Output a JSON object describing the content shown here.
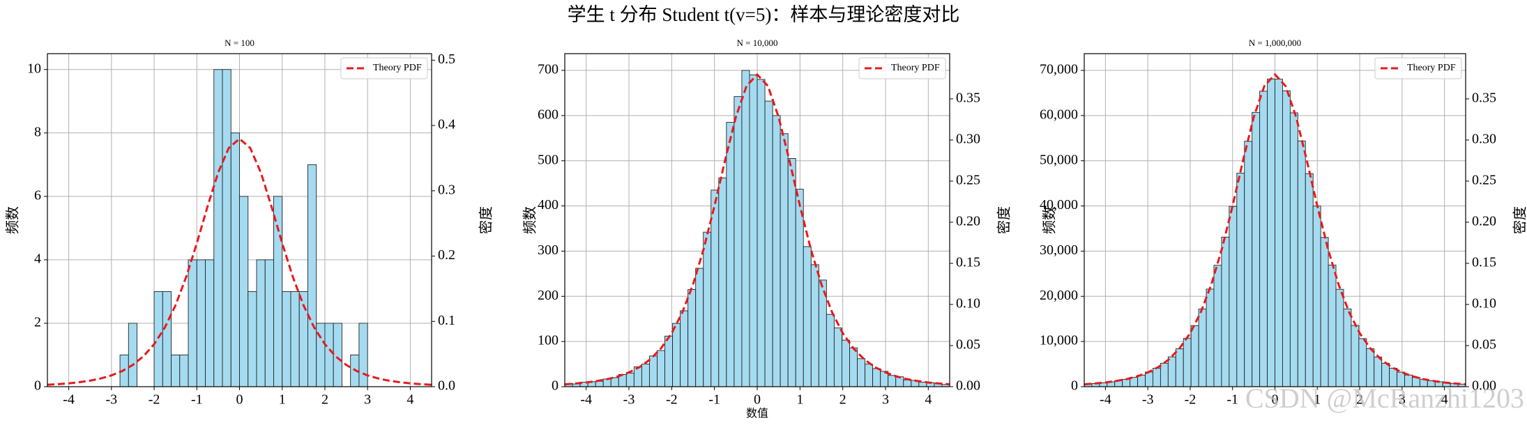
{
  "title": "学生 t 分布 Student t(v=5)：样本与理论密度对比",
  "watermark": "CSDN @McRanzhi1203",
  "chart_data": [
    {
      "type": "histogram",
      "title": "N = 100",
      "ylabel": "频数",
      "y2label": "密度",
      "bins": [
        -2.8,
        -2.6,
        -2.4,
        -2.2,
        -2.0,
        -1.8,
        -1.6,
        -1.4,
        -1.2,
        -1.0,
        -0.8,
        -0.6,
        -0.4,
        -0.2,
        0,
        0.2,
        0.4,
        0.6,
        0.8,
        1.0,
        1.2,
        1.4,
        1.6,
        1.8,
        2.0,
        2.2,
        2.4,
        2.6,
        2.8,
        3.0
      ],
      "values": [
        1,
        2,
        0,
        0,
        3,
        3,
        1,
        1,
        4,
        4,
        4,
        10,
        10,
        8,
        6,
        3,
        4,
        4,
        6,
        3,
        3,
        3,
        7,
        2,
        2,
        2,
        0,
        1,
        2
      ],
      "color": "#a5dbf0",
      "edgecolor": "#222222",
      "series": [
        {
          "name": "Theory PDF",
          "color": "#e8191c",
          "axis": "y2",
          "x": [
            -4.5,
            -4.25,
            -4,
            -3.75,
            -3.5,
            -3.25,
            -3,
            -2.75,
            -2.5,
            -2.25,
            -2,
            -1.75,
            -1.5,
            -1.25,
            -1,
            -0.75,
            -0.5,
            -0.25,
            0,
            0.25,
            0.5,
            0.75,
            1,
            1.25,
            1.5,
            1.75,
            2,
            2.25,
            2.5,
            2.75,
            3,
            3.25,
            3.5,
            3.75,
            4,
            4.25,
            4.5
          ],
          "values": [
            0.0029,
            0.0039,
            0.0051,
            0.0069,
            0.0092,
            0.0126,
            0.0173,
            0.0239,
            0.0333,
            0.0466,
            0.0651,
            0.0905,
            0.1245,
            0.1679,
            0.2197,
            0.2757,
            0.3279,
            0.3657,
            0.3796,
            0.3657,
            0.3279,
            0.2757,
            0.2197,
            0.1679,
            0.1245,
            0.0905,
            0.0651,
            0.0466,
            0.0333,
            0.0239,
            0.0173,
            0.0126,
            0.0092,
            0.0069,
            0.0051,
            0.0039,
            0.0029
          ]
        }
      ],
      "xlim": [
        -4.5,
        4.5
      ],
      "xticks": [
        -4,
        -3,
        -2,
        -1,
        0,
        1,
        2,
        3,
        4
      ],
      "ylim": [
        0,
        10.5
      ],
      "yticks": [
        0,
        2,
        4,
        6,
        8,
        10
      ],
      "y2lim": [
        0,
        0.51
      ],
      "y2ticks": [
        {
          "value": 0,
          "label": "0.0"
        },
        0.1,
        0.2,
        0.3,
        0.4,
        0.5
      ],
      "grid": true,
      "legend": "upper right"
    },
    {
      "type": "histogram",
      "title": "N = 10,000",
      "xlabel": "数值",
      "ylabel": "频数",
      "y2label": "密度",
      "bins": [
        -4.5,
        -4.32,
        -4.14,
        -3.96,
        -3.78,
        -3.6,
        -3.42,
        -3.24,
        -3.06,
        -2.88,
        -2.7,
        -2.52,
        -2.34,
        -2.16,
        -1.98,
        -1.8,
        -1.62,
        -1.44,
        -1.26,
        -1.08,
        -0.9,
        -0.72,
        -0.54,
        -0.36,
        -0.18,
        0,
        0.18,
        0.36,
        0.54,
        0.72,
        0.9,
        1.08,
        1.26,
        1.44,
        1.62,
        1.8,
        1.98,
        2.16,
        2.34,
        2.52,
        2.7,
        2.88,
        3.06,
        3.24,
        3.42,
        3.6,
        3.78,
        3.96,
        4.14,
        4.32,
        4.5
      ],
      "values": [
        7,
        6,
        10,
        11,
        12,
        17,
        20,
        27,
        30,
        44,
        50,
        68,
        80,
        112,
        140,
        168,
        215,
        262,
        342,
        435,
        462,
        585,
        642,
        700,
        690,
        680,
        632,
        600,
        560,
        505,
        437,
        310,
        270,
        236,
        160,
        130,
        103,
        86,
        62,
        50,
        40,
        34,
        25,
        22,
        15,
        14,
        10,
        9,
        7,
        5
      ],
      "color": "#a5dbf0",
      "edgecolor": "#222222",
      "series": [
        {
          "name": "Theory PDF",
          "color": "#e8191c",
          "axis": "y2",
          "x": [
            -4.5,
            -4.25,
            -4,
            -3.75,
            -3.5,
            -3.25,
            -3,
            -2.75,
            -2.5,
            -2.25,
            -2,
            -1.75,
            -1.5,
            -1.25,
            -1,
            -0.75,
            -0.5,
            -0.25,
            0,
            0.25,
            0.5,
            0.75,
            1,
            1.25,
            1.5,
            1.75,
            2,
            2.25,
            2.5,
            2.75,
            3,
            3.25,
            3.5,
            3.75,
            4,
            4.25,
            4.5
          ],
          "values": [
            0.0029,
            0.0039,
            0.0051,
            0.0069,
            0.0092,
            0.0126,
            0.0173,
            0.0239,
            0.0333,
            0.0466,
            0.0651,
            0.0905,
            0.1245,
            0.1679,
            0.2197,
            0.2757,
            0.3279,
            0.3657,
            0.3796,
            0.3657,
            0.3279,
            0.2757,
            0.2197,
            0.1679,
            0.1245,
            0.0905,
            0.0651,
            0.0466,
            0.0333,
            0.0239,
            0.0173,
            0.0126,
            0.0092,
            0.0069,
            0.0051,
            0.0039,
            0.0029
          ]
        }
      ],
      "xlim": [
        -4.5,
        4.5
      ],
      "xticks": [
        -4,
        -3,
        -2,
        -1,
        0,
        1,
        2,
        3,
        4
      ],
      "ylim": [
        0,
        737
      ],
      "yticks": [
        0,
        100,
        200,
        300,
        400,
        500,
        600,
        700
      ],
      "y2lim": [
        0,
        0.405
      ],
      "y2ticks": [
        {
          "value": 0,
          "label": "0.00"
        },
        0.05,
        {
          "value": 0.1,
          "label": "0.10"
        },
        0.15,
        {
          "value": 0.2,
          "label": "0.20"
        },
        0.25,
        {
          "value": 0.3,
          "label": "0.30"
        },
        0.35
      ],
      "grid": true,
      "legend": "upper right"
    },
    {
      "type": "histogram",
      "title": "N = 1,000,000",
      "ylabel": "频数",
      "y2label": "密度",
      "bins": [
        -4.5,
        -4.32,
        -4.14,
        -3.96,
        -3.78,
        -3.6,
        -3.42,
        -3.24,
        -3.06,
        -2.88,
        -2.7,
        -2.52,
        -2.34,
        -2.16,
        -1.98,
        -1.8,
        -1.62,
        -1.44,
        -1.26,
        -1.08,
        -0.9,
        -0.72,
        -0.54,
        -0.36,
        -0.18,
        0,
        0.18,
        0.36,
        0.54,
        0.72,
        0.9,
        1.08,
        1.26,
        1.44,
        1.62,
        1.8,
        1.98,
        2.16,
        2.34,
        2.52,
        2.7,
        2.88,
        3.06,
        3.24,
        3.42,
        3.6,
        3.78,
        3.96,
        4.14,
        4.32,
        4.5
      ],
      "values": [
        590,
        710,
        870,
        1070,
        1340,
        1630,
        2060,
        2560,
        3250,
        4080,
        5190,
        6600,
        8380,
        10690,
        13520,
        17180,
        21600,
        26870,
        33100,
        39900,
        47250,
        54300,
        60700,
        65400,
        68100,
        68050,
        65480,
        60600,
        54380,
        47150,
        39980,
        33020,
        26920,
        21550,
        17200,
        13560,
        10650,
        8400,
        6580,
        5190,
        4100,
        3230,
        2580,
        2040,
        1650,
        1320,
        1090,
        850,
        730,
        570
      ],
      "color": "#a5dbf0",
      "edgecolor": "#222222",
      "series": [
        {
          "name": "Theory PDF",
          "color": "#e8191c",
          "axis": "y2",
          "x": [
            -4.5,
            -4.25,
            -4,
            -3.75,
            -3.5,
            -3.25,
            -3,
            -2.75,
            -2.5,
            -2.25,
            -2,
            -1.75,
            -1.5,
            -1.25,
            -1,
            -0.75,
            -0.5,
            -0.25,
            0,
            0.25,
            0.5,
            0.75,
            1,
            1.25,
            1.5,
            1.75,
            2,
            2.25,
            2.5,
            2.75,
            3,
            3.25,
            3.5,
            3.75,
            4,
            4.25,
            4.5
          ],
          "values": [
            0.0029,
            0.0039,
            0.0051,
            0.0069,
            0.0092,
            0.0126,
            0.0173,
            0.0239,
            0.0333,
            0.0466,
            0.0651,
            0.0905,
            0.1245,
            0.1679,
            0.2197,
            0.2757,
            0.3279,
            0.3657,
            0.3796,
            0.3657,
            0.3279,
            0.2757,
            0.2197,
            0.1679,
            0.1245,
            0.0905,
            0.0651,
            0.0466,
            0.0333,
            0.0239,
            0.0173,
            0.0126,
            0.0092,
            0.0069,
            0.0051,
            0.0039,
            0.0029
          ]
        }
      ],
      "xlim": [
        -4.5,
        4.5
      ],
      "xticks": [
        -4,
        -3,
        -2,
        -1,
        0,
        1,
        2,
        3,
        4
      ],
      "ylim": [
        0,
        73700
      ],
      "yticks": [
        0,
        {
          "value": 10000,
          "label": "10,000"
        },
        {
          "value": 20000,
          "label": "20,000"
        },
        {
          "value": 30000,
          "label": "30,000"
        },
        {
          "value": 40000,
          "label": "40,000"
        },
        {
          "value": 50000,
          "label": "50,000"
        },
        {
          "value": 60000,
          "label": "60,000"
        },
        {
          "value": 70000,
          "label": "70,000"
        }
      ],
      "y2lim": [
        0,
        0.405
      ],
      "y2ticks": [
        {
          "value": 0,
          "label": "0.00"
        },
        0.05,
        {
          "value": 0.1,
          "label": "0.10"
        },
        0.15,
        {
          "value": 0.2,
          "label": "0.20"
        },
        0.25,
        {
          "value": 0.3,
          "label": "0.30"
        },
        0.35
      ],
      "grid": true,
      "legend": "upper right"
    }
  ]
}
